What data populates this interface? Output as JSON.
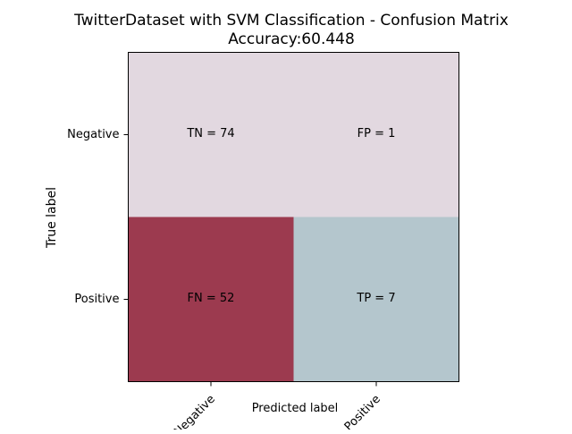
{
  "chart_data": {
    "type": "heatmap",
    "title": "TwitterDataset with SVM Classification - Confusion Matrix",
    "subtitle": "Accuracy:60.448",
    "xlabel": "Predicted label",
    "ylabel": "True label",
    "x_categories": [
      "Negative",
      "Positive"
    ],
    "y_categories": [
      "Negative",
      "Positive"
    ],
    "values": [
      [
        74,
        1
      ],
      [
        52,
        7
      ]
    ],
    "cell_labels": [
      [
        "TN = 74",
        "FP = 1"
      ],
      [
        "FN = 52",
        "TP = 7"
      ]
    ],
    "colors": [
      [
        "#e2d8e0",
        "#e2d8e0"
      ],
      [
        "#9c3a4f",
        "#b4c6cd"
      ]
    ],
    "grid": false,
    "legend": "none"
  }
}
